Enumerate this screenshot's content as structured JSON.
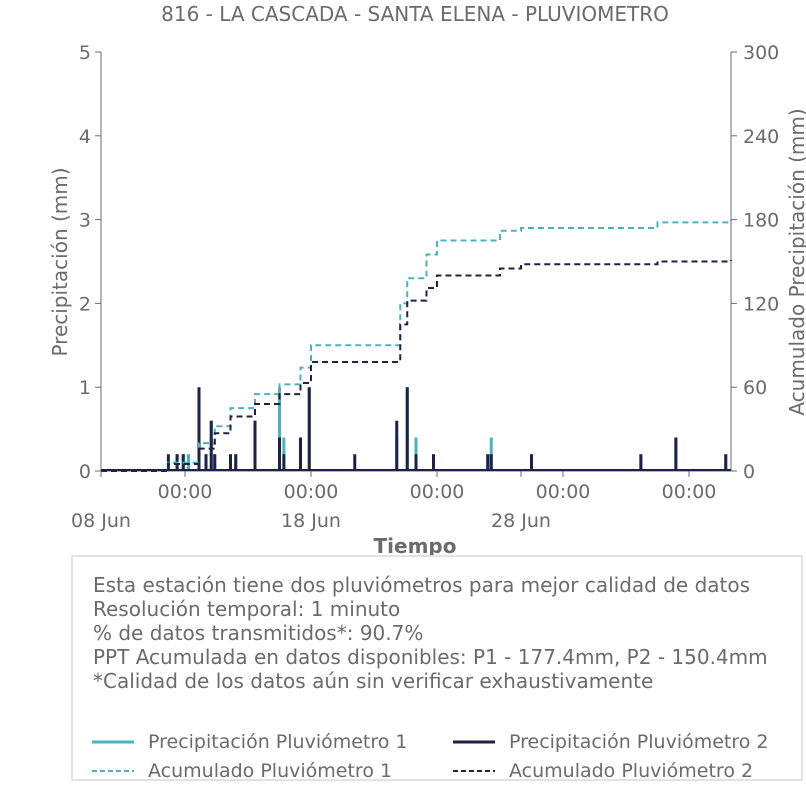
{
  "chart_data": {
    "type": "line",
    "title": "816 - LA CASCADA - SANTA ELENA - PLUVIOMETRO",
    "xlabel": "Tiempo",
    "ylabel": "Precipitación (mm)",
    "ylabel_right": "Acumulado Precipitación (mm)",
    "xlim": [
      "2023-06-08",
      "2023-07-08"
    ],
    "ylim": [
      0,
      5
    ],
    "ylim_right": [
      0,
      300
    ],
    "yticks": [
      0,
      1,
      2,
      3,
      4,
      5
    ],
    "yticks_right": [
      0,
      60,
      120,
      180,
      240,
      300
    ],
    "xticks": [
      {
        "date": "2023-06-12",
        "label": "00:00"
      },
      {
        "date": "2023-06-18",
        "label": "00:00"
      },
      {
        "date": "2023-06-24",
        "label": "00:00"
      },
      {
        "date": "2023-06-30",
        "label": "00:00"
      },
      {
        "date": "2023-07-06",
        "label": "00:00"
      }
    ],
    "xticks_major": [
      {
        "date": "2023-06-08",
        "label": "08 Jun"
      },
      {
        "date": "2023-06-18",
        "label": "18 Jun"
      },
      {
        "date": "2023-06-28",
        "label": "28 Jun"
      }
    ],
    "grid": false,
    "legend_position": "bottom",
    "series": [
      {
        "name": "Precipitación Pluviómetro 1",
        "axis": "left",
        "style": "bars",
        "color": "#4bb3bf",
        "x": [
          "2023-06-11 15:00",
          "2023-06-11 22:00",
          "2023-06-12 04:00",
          "2023-06-13 00:00",
          "2023-06-13 06:00",
          "2023-06-13 10:00",
          "2023-06-14 04:00",
          "2023-06-14 10:00",
          "2023-06-15 08:00",
          "2023-06-16 12:00",
          "2023-06-16 17:00",
          "2023-06-17 12:00",
          "2023-06-17 22:00",
          "2023-06-22 02:00",
          "2023-06-22 14:00",
          "2023-06-23 00:00",
          "2023-06-23 20:00",
          "2023-06-26 10:00",
          "2023-06-26 14:00",
          "2023-06-28 12:00",
          "2023-07-03 17:00",
          "2023-07-05 09:00",
          "2023-07-07 18:00"
        ],
        "values": [
          0.2,
          0.2,
          0.2,
          0.2,
          0.6,
          0.2,
          0.2,
          0.2,
          0.6,
          1.0,
          0.4,
          0.4,
          1.0,
          0.4,
          1.0,
          0.4,
          0.2,
          0.2,
          0.4,
          0.2,
          0.2,
          0.4,
          0.2
        ]
      },
      {
        "name": "Precipitación Pluviómetro 2",
        "axis": "left",
        "style": "bars",
        "color": "#1d2246",
        "x": [
          "2023-06-11 05:00",
          "2023-06-11 15:00",
          "2023-06-11 22:00",
          "2023-06-12 16:00",
          "2023-06-13 00:00",
          "2023-06-13 06:00",
          "2023-06-13 10:00",
          "2023-06-14 04:00",
          "2023-06-14 10:00",
          "2023-06-15 08:00",
          "2023-06-16 12:00",
          "2023-06-16 17:00",
          "2023-06-17 12:00",
          "2023-06-17 22:00",
          "2023-06-20 02:00",
          "2023-06-22 02:00",
          "2023-06-22 14:00",
          "2023-06-23 00:00",
          "2023-06-23 20:00",
          "2023-06-26 10:00",
          "2023-06-26 14:00",
          "2023-06-28 12:00",
          "2023-07-03 17:00",
          "2023-07-05 09:00",
          "2023-07-07 18:00"
        ],
        "values": [
          0.2,
          0.2,
          0.2,
          1.0,
          0.2,
          0.6,
          0.2,
          0.2,
          0.2,
          0.6,
          0.4,
          0.2,
          0.4,
          1.0,
          0.2,
          0.6,
          1.0,
          0.2,
          0.2,
          0.2,
          0.2,
          0.2,
          0.2,
          0.4,
          0.2
        ]
      },
      {
        "name": "Acumulado Pluviómetro 1",
        "axis": "right",
        "style": "dashed-step",
        "color": "#4bb3bf",
        "x": [
          "2023-06-08",
          "2023-06-11 05:00",
          "2023-06-12 16:00",
          "2023-06-13 10:00",
          "2023-06-14 04:00",
          "2023-06-15 08:00",
          "2023-06-16 12:00",
          "2023-06-17 12:00",
          "2023-06-18 00:00",
          "2023-06-22 00:00",
          "2023-06-22 06:00",
          "2023-06-22 14:00",
          "2023-06-23 12:00",
          "2023-06-24 00:00",
          "2023-06-24 20:00",
          "2023-06-27 00:00",
          "2023-06-28 00:00",
          "2023-07-04 12:00",
          "2023-07-08"
        ],
        "values": [
          0,
          6,
          20,
          32,
          45,
          55,
          62,
          74,
          90,
          90,
          120,
          138,
          155,
          165,
          165,
          172,
          174,
          178,
          180
        ]
      },
      {
        "name": "Acumulado Pluviómetro 2",
        "axis": "right",
        "style": "dashed-step",
        "color": "#1d2246",
        "x": [
          "2023-06-08",
          "2023-06-11 05:00",
          "2023-06-12 16:00",
          "2023-06-13 10:00",
          "2023-06-14 04:00",
          "2023-06-15 08:00",
          "2023-06-16 12:00",
          "2023-06-17 12:00",
          "2023-06-18 00:00",
          "2023-06-22 00:00",
          "2023-06-22 06:00",
          "2023-06-22 14:00",
          "2023-06-23 12:00",
          "2023-06-24 00:00",
          "2023-06-24 20:00",
          "2023-06-27 00:00",
          "2023-06-28 00:00",
          "2023-07-04 12:00",
          "2023-07-08"
        ],
        "values": [
          0,
          5,
          16,
          27,
          39,
          48,
          55,
          63,
          78,
          78,
          105,
          122,
          131,
          140,
          140,
          145,
          148,
          150,
          151
        ]
      }
    ]
  },
  "info": {
    "lines": [
      "Esta estación tiene dos pluviómetros para mejor calidad de datos",
      "Resolución temporal: 1 minuto",
      "% de datos transmitidos*: 90.7%",
      "PPT Acumulada en datos disponibles: P1 - 177.4mm, P2 - 150.4mm",
      "*Calidad de los datos aún sin verificar exhaustivamente"
    ]
  },
  "legend": {
    "p1": "Precipitación Pluviómetro 1",
    "p2": "Precipitación Pluviómetro 2",
    "a1": "Acumulado Pluviómetro 1",
    "a2": "Acumulado Pluviómetro 2"
  }
}
